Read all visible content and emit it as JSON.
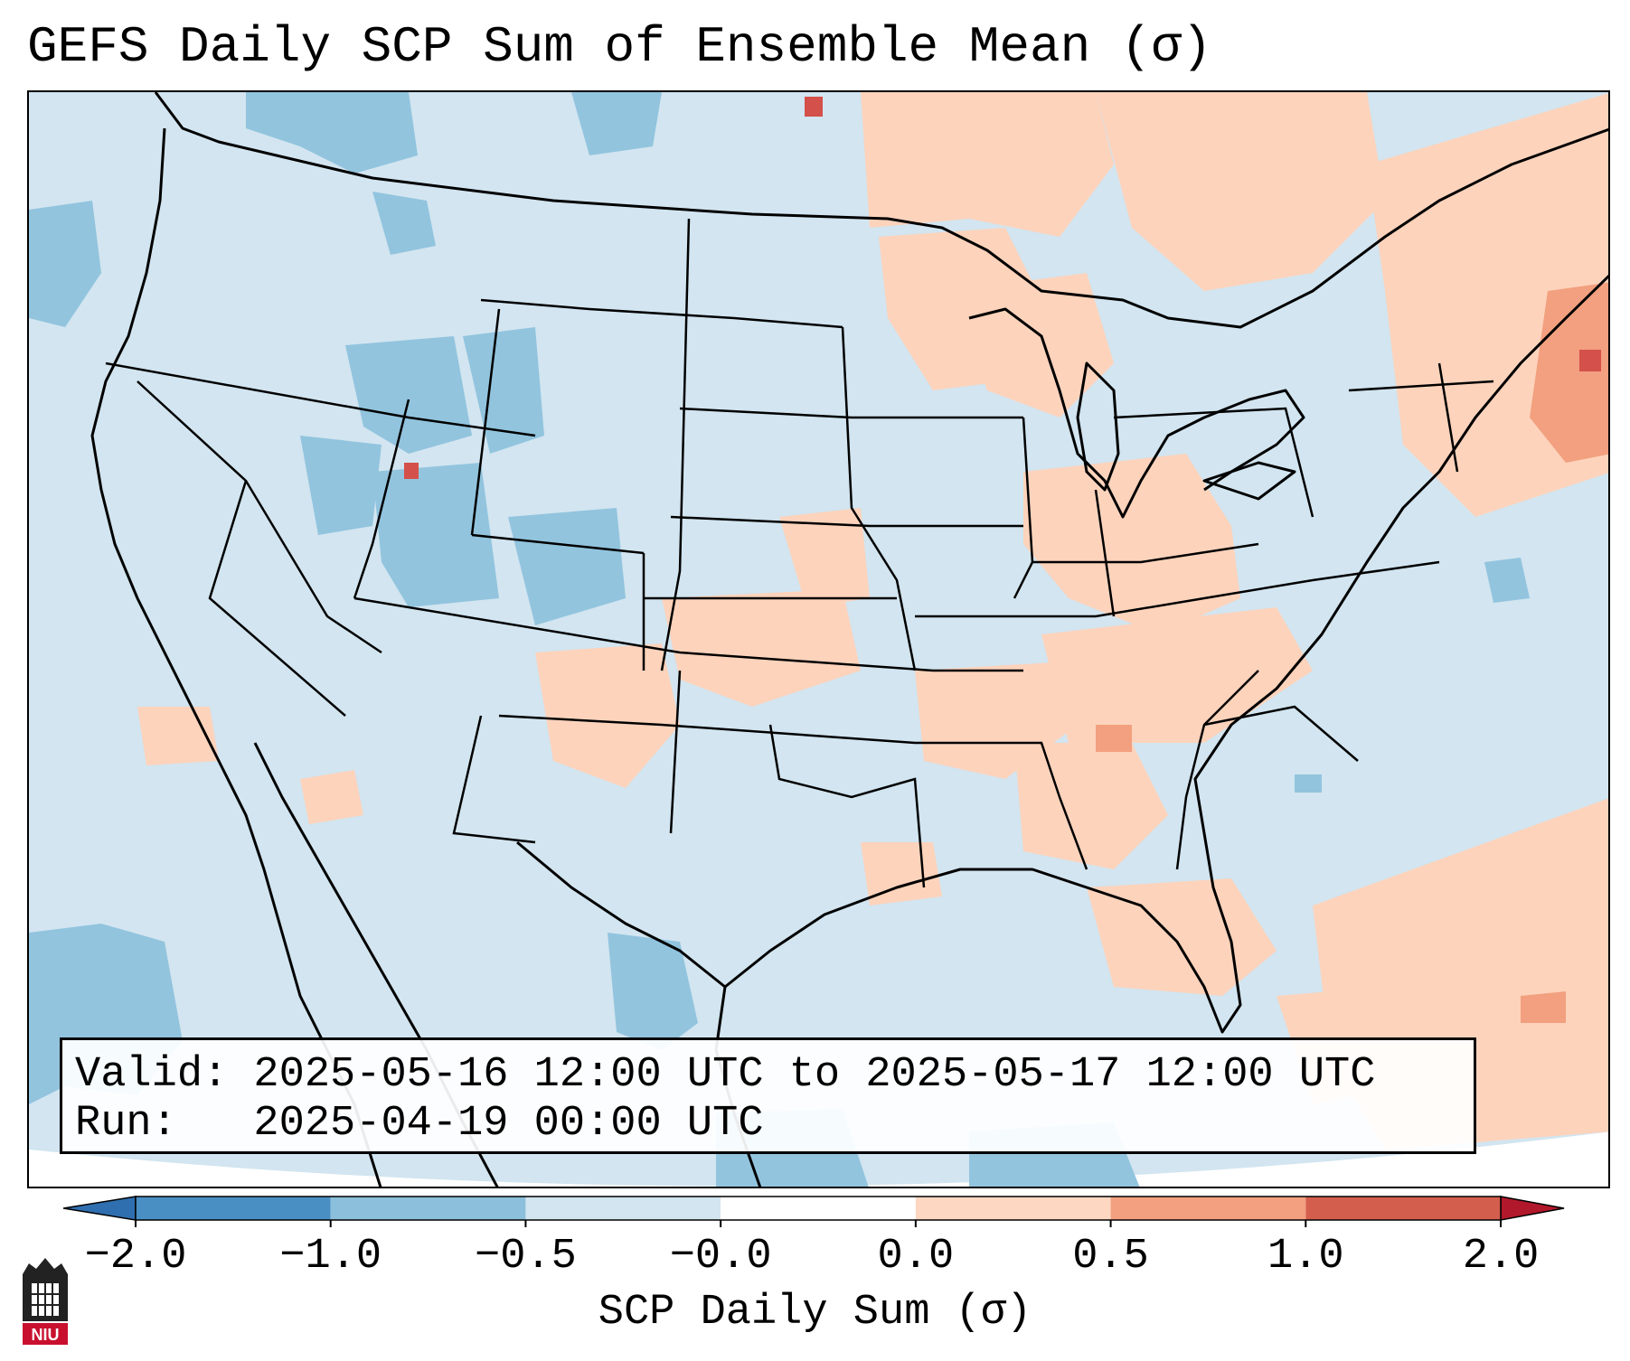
{
  "title": "GEFS Daily SCP Sum of Ensemble Mean (σ)",
  "info": {
    "valid_line": "Valid: 2025-05-16 12:00 UTC to 2025-05-17 12:00 UTC",
    "run_line": "Run:   2025-04-19 00:00 UTC"
  },
  "colorbar": {
    "label": "SCP Daily Sum (σ)",
    "ticks": [
      "−2.0",
      "−1.0",
      "−0.5",
      "−0.0",
      "0.0",
      "0.5",
      "1.0",
      "2.0"
    ],
    "colors": [
      "#4a8fc4",
      "#8cbfdb",
      "#d2e5f0",
      "#ffffff",
      "#fdd7c2",
      "#f2a07f",
      "#d45e4e"
    ],
    "extend_colors": {
      "min": "#2f6fb0",
      "max": "#b2182b"
    }
  },
  "map": {
    "background_color": "#d2e5f0",
    "outside_color": "#ffffff",
    "negative_color": "#92c4de",
    "positive_color": "#fdd3bc",
    "strong_positive_color": "#f2a07f",
    "extreme_positive_color": "#d4504a",
    "outline_color": "#000000"
  },
  "logo": {
    "text": "NIU",
    "name": "niu-logo"
  }
}
